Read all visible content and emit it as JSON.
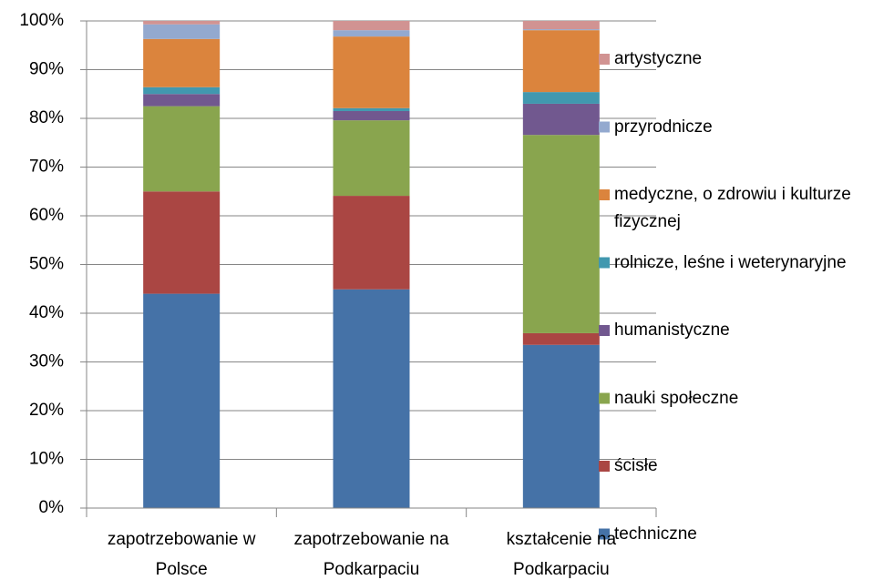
{
  "chart_data": {
    "type": "stacked_bar",
    "categories": [
      "zapotrzebowanie w Polsce",
      "zapotrzebowanie na Podkarpaciu",
      "kształcenie na Podkarpaciu"
    ],
    "series": [
      {
        "name": "techniczne",
        "color": "#4572a7",
        "values": [
          44,
          44.9,
          33.5
        ]
      },
      {
        "name": "ścisłe",
        "color": "#aa4643",
        "values": [
          21,
          19.2,
          2.4
        ]
      },
      {
        "name": "nauki społeczne",
        "color": "#89a54e",
        "values": [
          17.5,
          15.5,
          40.7
        ]
      },
      {
        "name": "humanistyczne",
        "color": "#71588f",
        "values": [
          2.5,
          1.9,
          6.4
        ]
      },
      {
        "name": "rolnicze, leśne i weterynaryjne",
        "color": "#4198af",
        "values": [
          1.4,
          0.6,
          2.4
        ]
      },
      {
        "name": "medyczne, o zdrowiu i kulturze fizycznej",
        "color": "#db843d",
        "values": [
          9.9,
          14.7,
          12.7
        ]
      },
      {
        "name": "przyrodnicze",
        "color": "#93a9cf",
        "values": [
          3,
          1.3,
          0.2
        ]
      },
      {
        "name": "artystyczne",
        "color": "#d19392",
        "values": [
          0.7,
          1.9,
          1.7
        ]
      }
    ],
    "ylim": [
      0,
      100
    ],
    "yticks": [
      {
        "value": 0,
        "label": "0%"
      },
      {
        "value": 10,
        "label": "10%"
      },
      {
        "value": 20,
        "label": "20%"
      },
      {
        "value": 30,
        "label": "30%"
      },
      {
        "value": 40,
        "label": "40%"
      },
      {
        "value": 50,
        "label": "50%"
      },
      {
        "value": 60,
        "label": "60%"
      },
      {
        "value": 70,
        "label": "70%"
      },
      {
        "value": 80,
        "label": "80%"
      },
      {
        "value": 90,
        "label": "90%"
      },
      {
        "value": 100,
        "label": "100%"
      }
    ],
    "grid": true,
    "legend": "right"
  }
}
